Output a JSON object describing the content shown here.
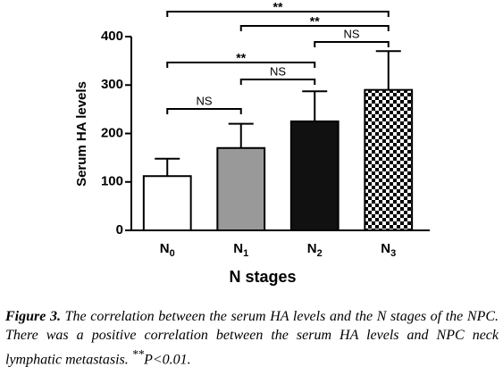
{
  "chart_data": {
    "type": "bar",
    "categories": [
      "N0",
      "N1",
      "N2",
      "N3"
    ],
    "values": [
      112,
      170,
      225,
      290
    ],
    "errors": [
      36,
      50,
      62,
      80
    ],
    "colors": [
      "#ffffff",
      "#999999",
      "#111111",
      "checker"
    ],
    "ylim": [
      0,
      400
    ],
    "yticks": [
      0,
      100,
      200,
      300,
      400
    ],
    "ylabel": "Serum HA levels",
    "xlabel": "N stages",
    "comparisons": [
      {
        "pair": [
          "N0",
          "N3"
        ],
        "label": "**"
      },
      {
        "pair": [
          "N1",
          "N3"
        ],
        "label": "**"
      },
      {
        "pair": [
          "N2",
          "N3"
        ],
        "label": "NS"
      },
      {
        "pair": [
          "N0",
          "N2"
        ],
        "label": "**"
      },
      {
        "pair": [
          "N1",
          "N2"
        ],
        "label": "NS"
      },
      {
        "pair": [
          "N0",
          "N1"
        ],
        "label": "NS"
      }
    ]
  },
  "caption": {
    "label": "Figure 3.",
    "text": "The correlation between the serum HA levels and the N stages of the NPC. There was a positive correlation between the serum HA levels and NPC neck lymphatic metastasis. ",
    "sup": "**",
    "tail": "P<0.01."
  }
}
